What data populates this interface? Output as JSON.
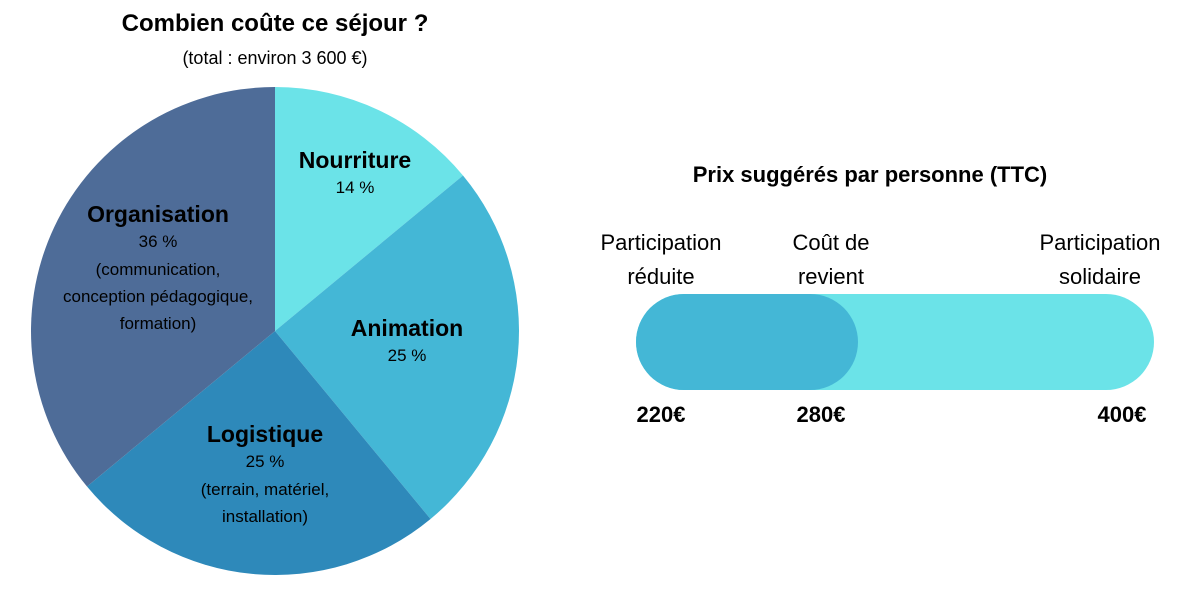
{
  "pie": {
    "title": "Combien coûte ce séjour ?",
    "subtitle": "(total : environ 3 600 €)"
  },
  "chart_data": [
    {
      "type": "pie",
      "title": "Combien coûte ce séjour ?",
      "subtitle": "(total : environ 3 600 €)",
      "slices": [
        {
          "label": "Nourriture",
          "value": 14,
          "pct_text": "14 %",
          "note": "",
          "color": "#6BE3E8"
        },
        {
          "label": "Animation",
          "value": 25,
          "pct_text": "25 %",
          "note": "",
          "color": "#44B7D6"
        },
        {
          "label": "Logistique",
          "value": 25,
          "pct_text": "25 %",
          "note": "(terrain, matériel, installation)",
          "note_lines": [
            "(terrain, matériel,",
            "installation)"
          ],
          "color": "#2E89BA"
        },
        {
          "label": "Organisation",
          "value": 36,
          "pct_text": "36 %",
          "note": "(communication, conception pédagogique, formation)",
          "note_lines": [
            "(communication,",
            "conception pédagogique,",
            "formation)"
          ],
          "color": "#4E6C98"
        }
      ]
    },
    {
      "type": "bar",
      "title": "Prix suggérés par personne (TTC)",
      "unit": "€",
      "xlim": [
        220,
        400
      ],
      "markers": [
        {
          "label_lines": [
            "Participation",
            "réduite"
          ],
          "value": 220,
          "value_text": "220€"
        },
        {
          "label_lines": [
            "Coût de",
            "revient"
          ],
          "value": 280,
          "value_text": "280€"
        },
        {
          "label_lines": [
            "Participation",
            "solidaire"
          ],
          "value": 400,
          "value_text": "400€"
        }
      ],
      "fill_value": 280,
      "colors": {
        "track": "#6BE3E8",
        "fill": "#44B7D6"
      }
    }
  ]
}
